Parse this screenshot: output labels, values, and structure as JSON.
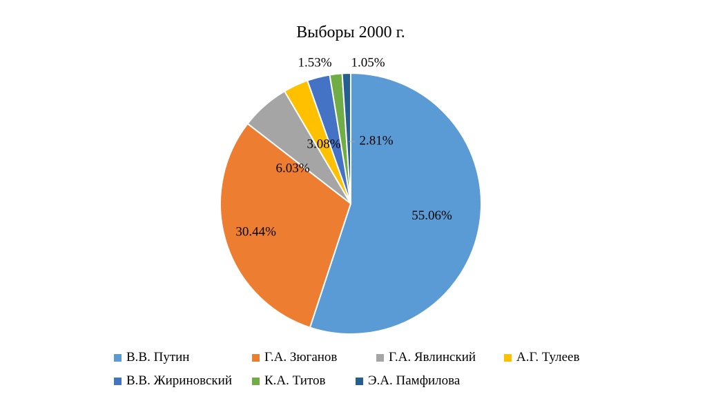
{
  "chart_data": {
    "type": "pie",
    "title": "Выборы 2000 г.",
    "categories": [
      "В.В. Путин",
      "Г.А. Зюганов",
      "Г.А. Явлинский",
      "А.Г. Тулеев",
      "В.В. Жириновский",
      "К.А. Титов",
      "Э.А. Памфилова"
    ],
    "values": [
      55.06,
      30.44,
      6.03,
      3.08,
      2.81,
      1.53,
      1.05
    ],
    "data_labels": [
      "55.06%",
      "30.44%",
      "6.03%",
      "3.08%",
      "2.81%",
      "1.53%",
      "1.05%"
    ],
    "colors": [
      "#5B9BD5",
      "#ED7D31",
      "#A5A5A5",
      "#FFC000",
      "#4472C4",
      "#70AD47",
      "#255E91"
    ],
    "legend_position": "bottom",
    "start_angle_deg": 0,
    "direction": "clockwise"
  }
}
